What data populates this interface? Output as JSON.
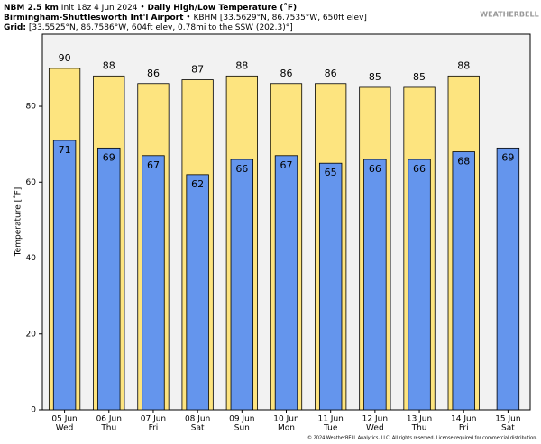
{
  "header": {
    "model": "NBM 2.5 km",
    "init": "Init 18z 4 Jun 2024",
    "title": "Daily High/Low Temperature (˚F)",
    "station": "Birmingham-Shuttlesworth Int'l Airport",
    "station_info": "KBHM [33.5629°N, 86.7535°W, 650ft elev]",
    "grid_label": "Grid:",
    "grid_info": "[33.5525°N, 86.7586°W, 604ft elev, 0.78mi to the SSW (202.3)°]",
    "logo": "WEATHERBELL",
    "footer": "© 2024 WeatherBELL Analytics, LLC. All rights reserved. License required for commercial distribution."
  },
  "chart_data": {
    "type": "bar",
    "ylabel": "Temperature [˚F]",
    "categories": [
      "05 Jun",
      "06 Jun",
      "07 Jun",
      "08 Jun",
      "09 Jun",
      "10 Jun",
      "11 Jun",
      "12 Jun",
      "13 Jun",
      "14 Jun",
      "15 Jun"
    ],
    "category_days": [
      "Wed",
      "Thu",
      "Fri",
      "Sat",
      "Sun",
      "Mon",
      "Tue",
      "Wed",
      "Thu",
      "Fri",
      "Sat"
    ],
    "series": [
      {
        "color": "#fde47f",
        "values": [
          90,
          88,
          86,
          87,
          88,
          86,
          86,
          85,
          85,
          88,
          null
        ]
      },
      {
        "color": "#6495ed",
        "values": [
          71,
          69,
          67,
          62,
          66,
          67,
          65,
          66,
          66,
          68,
          69
        ]
      }
    ],
    "ylim": [
      0,
      99
    ],
    "yticks": [
      0,
      20,
      40,
      60,
      80
    ],
    "grid": false
  }
}
